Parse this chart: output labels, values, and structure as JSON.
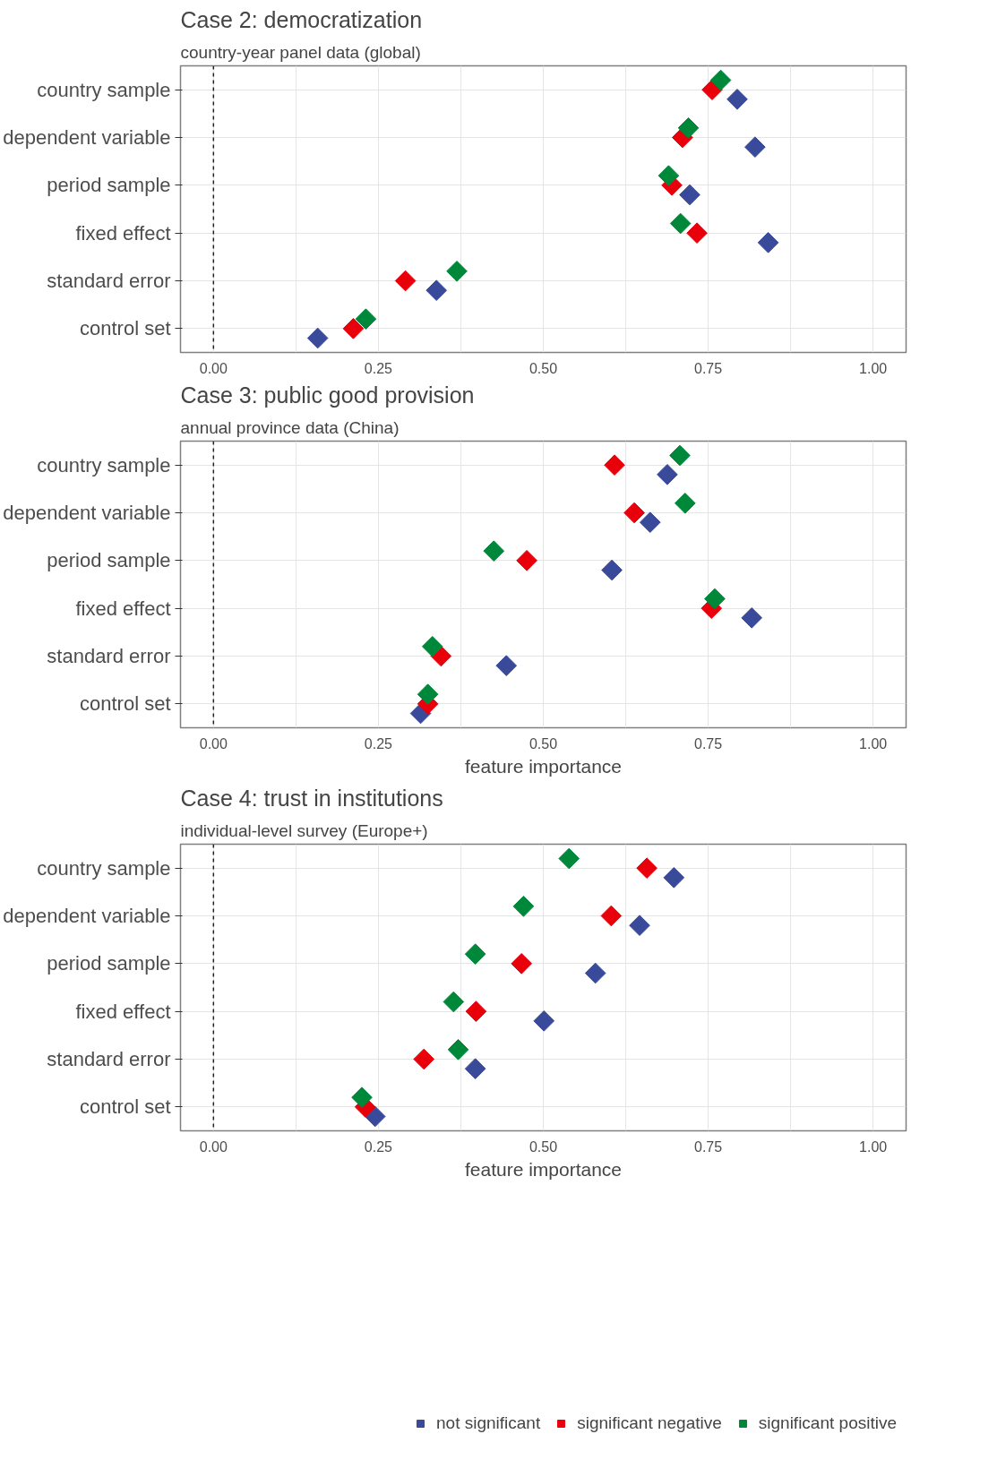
{
  "chart_data": [
    {
      "type": "scatter",
      "title": "Case 2: democratization",
      "subtitle": "country-year panel data (global)",
      "orientation": "horizontal",
      "marker": "diamond",
      "grid": true,
      "categories": [
        "country sample",
        "dependent variable",
        "period sample",
        "fixed effect",
        "standard error",
        "control set"
      ],
      "xlim": [
        -0.05,
        1.05
      ],
      "xticks": [
        {
          "value": 0,
          "label": "0.00"
        },
        {
          "value": 0.125,
          "label": null
        },
        {
          "value": 0.25,
          "label": "0.25"
        },
        {
          "value": 0.375,
          "label": null
        },
        {
          "value": 0.5,
          "label": "0.50"
        },
        {
          "value": 0.625,
          "label": null
        },
        {
          "value": 0.75,
          "label": "0.75"
        },
        {
          "value": 0.875,
          "label": null
        },
        {
          "value": 1,
          "label": "1.00"
        }
      ],
      "ref_lines": [
        {
          "axis": "x",
          "value": 0,
          "line_style": "dashed"
        }
      ],
      "series": [
        {
          "color": "#3a4a9a",
          "values": [
            0.794,
            0.821,
            0.722,
            0.841,
            0.338,
            0.158
          ]
        },
        {
          "color": "#e8000b",
          "values": [
            0.756,
            0.711,
            0.695,
            0.733,
            0.291,
            0.212
          ]
        },
        {
          "color": "#00883a",
          "values": [
            0.769,
            0.72,
            0.69,
            0.708,
            0.369,
            0.231
          ]
        }
      ]
    },
    {
      "type": "scatter",
      "title": "Case 3: public good provision",
      "subtitle": "annual province data (China)",
      "xlabel": "feature importance",
      "orientation": "horizontal",
      "marker": "diamond",
      "grid": true,
      "categories": [
        "country sample",
        "dependent variable",
        "period sample",
        "fixed effect",
        "standard error",
        "control set"
      ],
      "xlim": [
        -0.05,
        1.05
      ],
      "xticks": [
        {
          "value": 0,
          "label": "0.00"
        },
        {
          "value": 0.125,
          "label": null
        },
        {
          "value": 0.25,
          "label": "0.25"
        },
        {
          "value": 0.375,
          "label": null
        },
        {
          "value": 0.5,
          "label": "0.50"
        },
        {
          "value": 0.625,
          "label": null
        },
        {
          "value": 0.75,
          "label": "0.75"
        },
        {
          "value": 0.875,
          "label": null
        },
        {
          "value": 1,
          "label": "1.00"
        }
      ],
      "ref_lines": [
        {
          "axis": "x",
          "value": 0,
          "line_style": "dashed"
        }
      ],
      "series": [
        {
          "color": "#3a4a9a",
          "values": [
            0.688,
            0.662,
            0.604,
            0.816,
            0.444,
            0.314
          ]
        },
        {
          "color": "#e8000b",
          "values": [
            0.608,
            0.638,
            0.475,
            0.755,
            0.345,
            0.325
          ]
        },
        {
          "color": "#00883a",
          "values": [
            0.707,
            0.715,
            0.425,
            0.76,
            0.332,
            0.325
          ]
        }
      ]
    },
    {
      "type": "scatter",
      "title": "Case 4: trust in institutions",
      "subtitle": "individual-level survey (Europe+)",
      "xlabel": "feature importance",
      "orientation": "horizontal",
      "marker": "diamond",
      "grid": true,
      "legend": "bottom",
      "categories": [
        "country sample",
        "dependent variable",
        "period sample",
        "fixed effect",
        "standard error",
        "control set"
      ],
      "xlim": [
        -0.05,
        1.05
      ],
      "xticks": [
        {
          "value": 0,
          "label": "0.00"
        },
        {
          "value": 0.125,
          "label": null
        },
        {
          "value": 0.25,
          "label": "0.25"
        },
        {
          "value": 0.375,
          "label": null
        },
        {
          "value": 0.5,
          "label": "0.50"
        },
        {
          "value": 0.625,
          "label": null
        },
        {
          "value": 0.75,
          "label": "0.75"
        },
        {
          "value": 0.875,
          "label": null
        },
        {
          "value": 1,
          "label": "1.00"
        }
      ],
      "ref_lines": [
        {
          "axis": "x",
          "value": 0,
          "line_style": "dashed"
        }
      ],
      "series": [
        {
          "name": "not significant",
          "color": "#3a4a9a",
          "values": [
            0.698,
            0.646,
            0.579,
            0.501,
            0.397,
            0.245
          ]
        },
        {
          "name": "significant negative",
          "color": "#e8000b",
          "values": [
            0.657,
            0.603,
            0.467,
            0.398,
            0.319,
            0.23
          ]
        },
        {
          "name": "significant positive",
          "color": "#00883a",
          "values": [
            0.539,
            0.47,
            0.397,
            0.364,
            0.371,
            0.225
          ]
        }
      ]
    }
  ]
}
